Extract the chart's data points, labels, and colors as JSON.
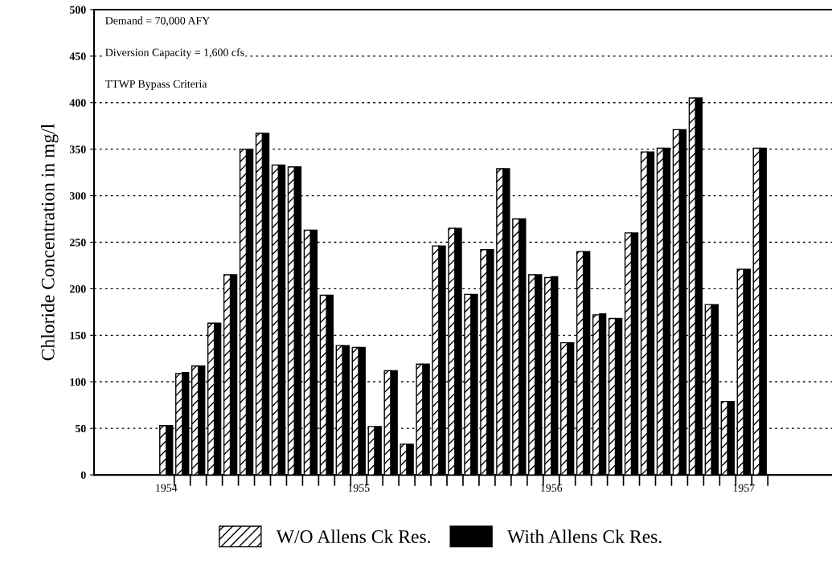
{
  "chart_data": {
    "type": "bar",
    "ylabel": "Chloride Concentration in mg/l",
    "annotations": [
      "Demand = 70,000 AFY",
      "Diversion Capacity = 1,600 cfs",
      "TTWP Bypass Criteria"
    ],
    "categories": [
      null,
      null,
      null,
      null,
      "1954",
      null,
      null,
      null,
      null,
      null,
      null,
      null,
      null,
      null,
      null,
      null,
      "1955",
      null,
      null,
      null,
      null,
      null,
      null,
      null,
      null,
      null,
      null,
      null,
      "1956",
      null,
      null,
      null,
      null,
      null,
      null,
      null,
      null,
      null,
      null,
      null,
      "1957",
      null,
      null,
      null,
      null,
      null
    ],
    "series": [
      {
        "name": "W/O Allens Ck Res.",
        "color": "#ffffff",
        "values": [
          null,
          null,
          null,
          null,
          53,
          109,
          117,
          163,
          215,
          350,
          367,
          333,
          331,
          263,
          193,
          139,
          137,
          52,
          112,
          33,
          119,
          246,
          265,
          194,
          242,
          329,
          275,
          215,
          212,
          142,
          240,
          172,
          168,
          260,
          347,
          351,
          371,
          405,
          183,
          79,
          221,
          351,
          null,
          null,
          null,
          null
        ]
      },
      {
        "name": "With Allens Ck Res.",
        "color": "#000000",
        "values": [
          null,
          null,
          null,
          null,
          53,
          110,
          117,
          163,
          215,
          350,
          367,
          333,
          331,
          263,
          193,
          139,
          137,
          52,
          112,
          33,
          119,
          246,
          265,
          194,
          242,
          329,
          275,
          215,
          213,
          142,
          240,
          173,
          168,
          260,
          347,
          351,
          371,
          405,
          183,
          79,
          221,
          351,
          null,
          null,
          null,
          null
        ]
      }
    ],
    "ylim": [
      0,
      500
    ],
    "yticks": [
      0,
      50,
      100,
      150,
      200,
      250,
      300,
      350,
      400,
      450,
      500
    ],
    "grid": "y",
    "legend": "bottom"
  }
}
